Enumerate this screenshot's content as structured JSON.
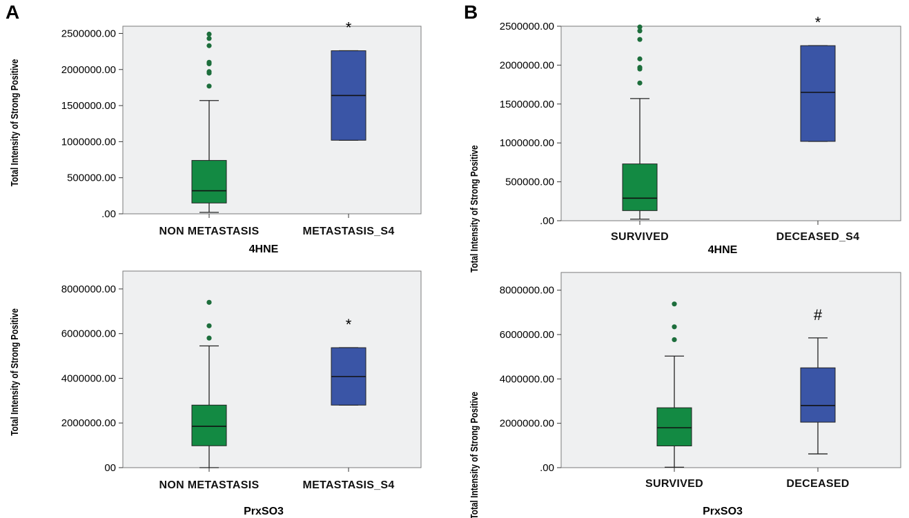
{
  "panels": {
    "a": "A",
    "b": "B"
  },
  "colors": {
    "green": "#138a43",
    "blue": "#3a55a6",
    "plot_bg": "#eff0f1",
    "outlier": "#1d6e3c"
  },
  "chart_data": [
    {
      "type": "box",
      "panel": "A",
      "xlabel": "4HNE",
      "ylabel": "Total Intensity of Strong Positive",
      "ylim": [
        0,
        2600000
      ],
      "yticks": [
        0,
        500000,
        1000000,
        1500000,
        2000000,
        2500000
      ],
      "ytick_labels": [
        ".00",
        "500000.00",
        "1000000.00",
        "1500000.00",
        "2000000.00",
        "2500000.00"
      ],
      "categories": [
        "NON METASTASIS",
        "METASTASIS_S4"
      ],
      "boxes": [
        {
          "min": 20000,
          "q1": 150000,
          "median": 320000,
          "q3": 740000,
          "max": 1570000,
          "outliers": [
            1770000,
            1950000,
            1970000,
            2080000,
            2100000,
            2330000,
            2430000,
            2490000
          ],
          "color": "green",
          "annotation": ""
        },
        {
          "min": 1020000,
          "q1": 1020000,
          "median": 1640000,
          "q3": 2260000,
          "max": 2260000,
          "outliers": [],
          "color": "blue",
          "annotation": "*"
        }
      ]
    },
    {
      "type": "box",
      "panel": "B",
      "xlabel": "4HNE",
      "ylabel": "Total Intensity of Strong Positive",
      "ylim": [
        0,
        2500000
      ],
      "yticks": [
        0,
        500000,
        1000000,
        1500000,
        2000000,
        2500000
      ],
      "ytick_labels": [
        ".00",
        "500000.00",
        "1000000.00",
        "1500000.00",
        "2000000.00",
        "2500000.00"
      ],
      "categories": [
        "SURVIVED",
        "DECEASED_S4"
      ],
      "boxes": [
        {
          "min": 20000,
          "q1": 130000,
          "median": 290000,
          "q3": 730000,
          "max": 1570000,
          "outliers": [
            1770000,
            1950000,
            1970000,
            2080000,
            2330000,
            2440000,
            2490000
          ],
          "color": "green",
          "annotation": ""
        },
        {
          "min": 1020000,
          "q1": 1020000,
          "median": 1650000,
          "q3": 2250000,
          "max": 2250000,
          "outliers": [],
          "color": "blue",
          "annotation": "*"
        }
      ]
    },
    {
      "type": "box",
      "panel": "A",
      "xlabel": "PrxSO3",
      "ylabel": "Total Intensity of Strong Positive",
      "ylim": [
        0,
        8800000
      ],
      "yticks": [
        0,
        2000000,
        4000000,
        6000000,
        8000000
      ],
      "ytick_labels": [
        "00",
        "2000000.00",
        "4000000.00",
        "6000000.00",
        "8000000.00"
      ],
      "categories": [
        "NON METASTASIS",
        "METASTASIS_S4"
      ],
      "boxes": [
        {
          "min": 0,
          "q1": 980000,
          "median": 1850000,
          "q3": 2800000,
          "max": 5450000,
          "outliers": [
            5800000,
            6350000,
            7400000
          ],
          "color": "green",
          "annotation": ""
        },
        {
          "min": 2800000,
          "q1": 2800000,
          "median": 4080000,
          "q3": 5370000,
          "max": 5370000,
          "outliers": [],
          "color": "blue",
          "annotation": "*"
        }
      ]
    },
    {
      "type": "box",
      "panel": "B",
      "xlabel": "PrxSO3",
      "ylabel": "Total Intensity of Strong Positive",
      "ylim": [
        0,
        8800000
      ],
      "yticks": [
        0,
        2000000,
        4000000,
        6000000,
        8000000
      ],
      "ytick_labels": [
        ".00",
        "2000000.00",
        "4000000.00",
        "6000000.00",
        "8000000.00"
      ],
      "categories": [
        "SURVIVED",
        "DECEASED"
      ],
      "boxes": [
        {
          "min": 20000,
          "q1": 980000,
          "median": 1800000,
          "q3": 2700000,
          "max": 5030000,
          "outliers": [
            5770000,
            6350000,
            7380000
          ],
          "color": "green",
          "annotation": ""
        },
        {
          "min": 620000,
          "q1": 2050000,
          "median": 2800000,
          "q3": 4500000,
          "max": 5850000,
          "outliers": [],
          "color": "blue",
          "annotation": "#"
        }
      ]
    }
  ]
}
